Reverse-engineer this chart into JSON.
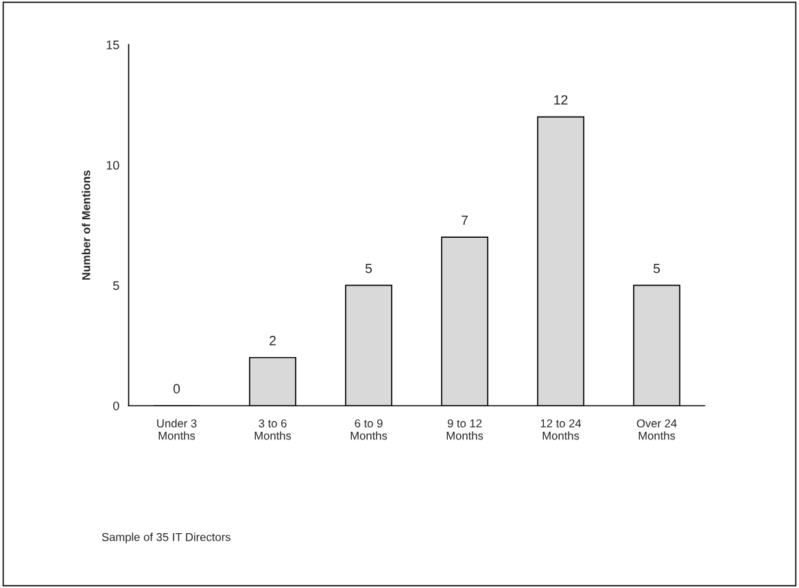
{
  "chart_data": {
    "type": "bar",
    "ylabel": "Number of Mentions",
    "categories": [
      "Under 3\nMonths",
      "3 to 6\nMonths",
      "6 to 9\nMonths",
      "9 to 12\nMonths",
      "12 to 24\nMonths",
      "Over 24\nMonths"
    ],
    "values": [
      0,
      2,
      5,
      7,
      12,
      5
    ],
    "color": "#d9d9d9",
    "ylim": [
      0,
      15
    ],
    "yticks": [
      0,
      5,
      10,
      15
    ],
    "grid": false,
    "data_labels": true,
    "annotations": [
      "Sample of 35 IT Directors"
    ]
  }
}
